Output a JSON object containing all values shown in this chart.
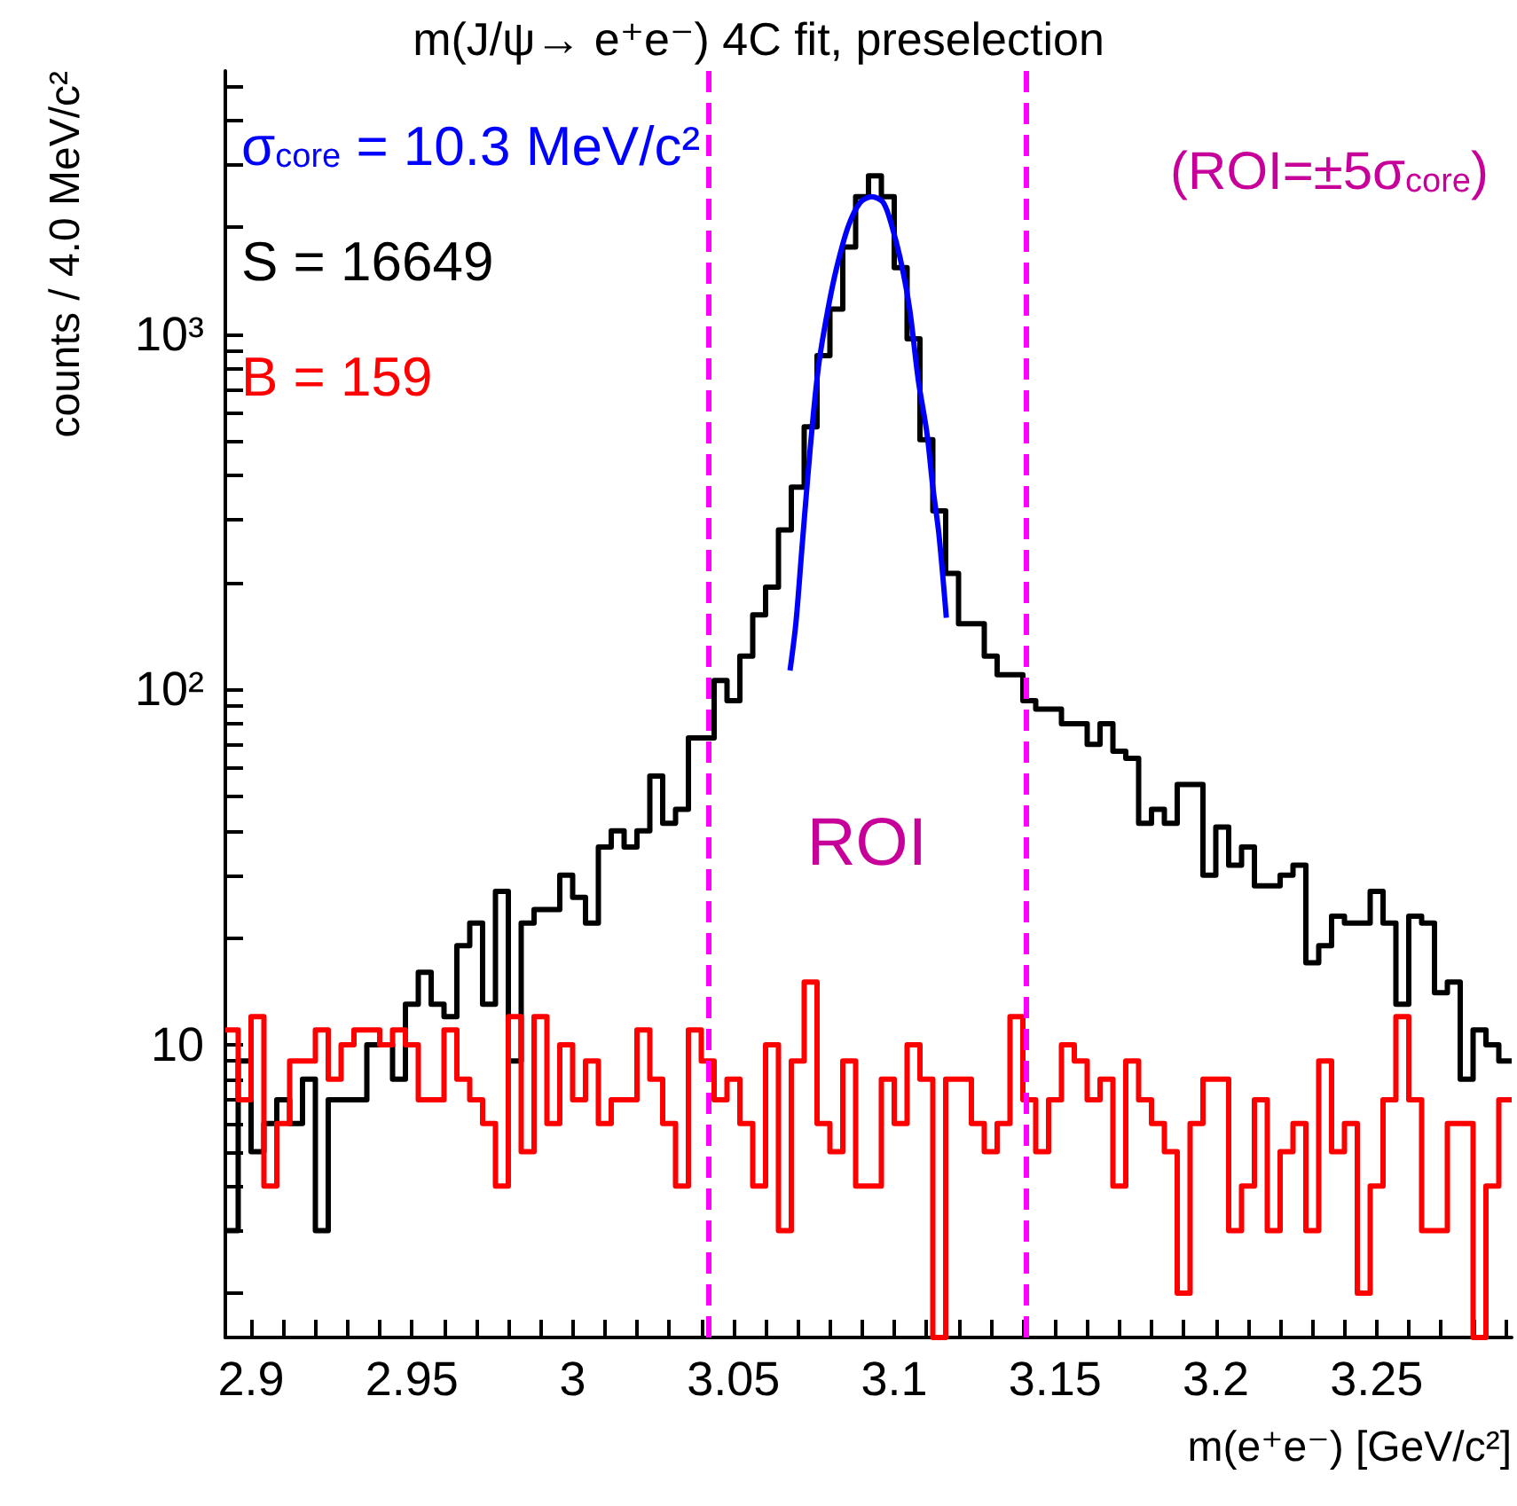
{
  "chart_data": {
    "type": "histogram",
    "title": "m(J/ψ→ e⁺e⁻) 4C fit, preselection",
    "xlabel": "m(e⁺e⁻) [GeV/c²]",
    "ylabel": "counts / 4.0 MeV/c²",
    "log": "y",
    "legend": "top left",
    "bins": [
      2.892,
      2.896,
      2.9,
      2.904,
      2.908,
      2.912,
      2.916,
      2.92,
      2.924,
      2.928,
      2.932,
      2.936,
      2.94,
      2.944,
      2.948,
      2.952,
      2.956,
      2.96,
      2.964,
      2.968,
      2.972,
      2.976,
      2.98,
      2.984,
      2.988,
      2.992,
      2.996,
      3,
      3.004,
      3.008,
      3.012,
      3.016,
      3.02,
      3.024,
      3.028,
      3.032,
      3.036,
      3.04,
      3.044,
      3.048,
      3.052,
      3.056,
      3.06,
      3.064,
      3.068,
      3.072,
      3.076,
      3.08,
      3.084,
      3.088,
      3.092,
      3.096,
      3.1,
      3.104,
      3.108,
      3.112,
      3.116,
      3.12,
      3.124,
      3.128,
      3.132,
      3.136,
      3.14,
      3.144,
      3.148,
      3.152,
      3.156,
      3.16,
      3.164,
      3.168,
      3.172,
      3.176,
      3.18,
      3.184,
      3.188,
      3.192,
      3.196,
      3.2,
      3.204,
      3.208,
      3.212,
      3.216,
      3.22,
      3.224,
      3.228,
      3.232,
      3.236,
      3.24,
      3.244,
      3.248,
      3.252,
      3.256,
      3.26,
      3.264,
      3.268,
      3.272,
      3.276,
      3.28,
      3.284,
      3.288,
      3.292
    ],
    "series": [
      {
        "name": "σ$_{core}$ = 10.3 MeV/c²",
        "type": "line",
        "color": "#0000ff",
        "x": [
          3.0676,
          3.0694,
          3.0712,
          3.073,
          3.0748,
          3.0766,
          3.0794,
          3.0821,
          3.0857,
          3.0894,
          3.093,
          3.0966,
          3.0993,
          3.1021,
          3.1048,
          3.1075,
          3.1102,
          3.112,
          3.1139,
          3.1162
        ],
        "values": [
          113,
          153,
          243,
          385,
          588,
          830,
          1175,
          1537,
          2009,
          2344,
          2437,
          2344,
          2009,
          1596,
          1175,
          740,
          524,
          371,
          273,
          159
        ]
      },
      {
        "name": "S = 16649",
        "color": "#000000",
        "values": [
          3,
          9,
          5,
          6,
          7,
          6,
          8,
          3,
          7,
          7,
          7,
          10,
          10,
          8,
          13,
          16,
          13,
          12,
          19,
          22,
          13,
          27,
          9,
          22,
          24,
          24,
          30,
          26,
          22,
          36,
          40,
          36,
          40,
          57,
          42,
          46,
          73,
          73,
          106,
          93,
          124,
          162,
          194,
          281,
          371,
          548,
          869,
          1175,
          1758,
          2437,
          2787,
          2437,
          1537,
          969,
          504,
          318,
          212,
          153,
          153,
          124,
          110,
          110,
          93,
          88,
          88,
          80,
          80,
          70,
          80,
          67,
          64,
          42,
          46,
          42,
          54,
          54,
          30,
          41,
          32,
          36,
          28,
          28,
          30,
          32,
          17,
          19,
          23,
          22,
          22,
          27,
          22,
          13,
          23,
          22,
          14,
          15,
          8,
          11,
          10,
          9
        ]
      },
      {
        "name": "B = 159",
        "color": "#ff0000",
        "values": [
          11,
          7,
          12,
          4,
          6,
          9,
          9,
          11,
          8,
          10,
          11,
          11,
          10,
          11,
          10,
          7,
          7,
          11,
          8,
          7,
          6,
          4,
          12,
          5,
          12,
          6,
          10,
          7,
          9,
          6,
          7,
          7,
          11,
          8,
          6,
          4,
          11,
          9,
          7,
          8,
          6,
          4,
          10,
          3,
          9,
          15,
          6,
          5,
          9,
          4,
          4,
          8,
          6,
          10,
          8,
          null,
          8,
          8,
          6,
          5,
          6,
          12,
          7,
          5,
          7,
          10,
          9,
          7,
          8,
          4,
          9,
          7,
          6,
          5,
          2,
          6,
          8,
          8,
          3,
          4,
          7,
          3,
          5,
          6,
          3,
          9,
          5,
          6,
          2,
          4,
          7,
          12,
          7,
          3,
          3,
          6,
          6,
          null,
          4,
          7
        ]
      }
    ],
    "xlim": [
      2.892,
      3.292
    ],
    "xticks": [
      2.9,
      {
        "value": 2.91,
        "label": null
      },
      {
        "value": 2.92,
        "label": null
      },
      {
        "value": 2.93,
        "label": null
      },
      {
        "value": 2.94,
        "label": null
      },
      2.95,
      {
        "value": 2.96,
        "label": null
      },
      {
        "value": 2.97,
        "label": null
      },
      {
        "value": 2.98,
        "label": null
      },
      {
        "value": 2.99,
        "label": null
      },
      3,
      {
        "value": 3.01,
        "label": null
      },
      {
        "value": 3.02,
        "label": null
      },
      {
        "value": 3.03,
        "label": null
      },
      {
        "value": 3.04,
        "label": null
      },
      3.05,
      {
        "value": 3.06,
        "label": null
      },
      {
        "value": 3.07,
        "label": null
      },
      {
        "value": 3.08,
        "label": null
      },
      {
        "value": 3.09,
        "label": null
      },
      3.1,
      {
        "value": 3.11,
        "label": null
      },
      {
        "value": 3.12,
        "label": null
      },
      {
        "value": 3.13,
        "label": null
      },
      {
        "value": 3.14,
        "label": null
      },
      3.15,
      {
        "value": 3.16,
        "label": null
      },
      {
        "value": 3.17,
        "label": null
      },
      {
        "value": 3.18,
        "label": null
      },
      {
        "value": 3.19,
        "label": null
      },
      3.2,
      {
        "value": 3.21,
        "label": null
      },
      {
        "value": 3.22,
        "label": null
      },
      {
        "value": 3.23,
        "label": null
      },
      {
        "value": 3.24,
        "label": null
      },
      3.25,
      {
        "value": 3.26,
        "label": null
      },
      {
        "value": 3.27,
        "label": null
      },
      {
        "value": 3.28,
        "label": null
      },
      {
        "value": 3.29,
        "label": null
      }
    ],
    "ylim": [
      1.5,
      5500
    ],
    "yticks": [
      {
        "value": 2,
        "label": null
      },
      {
        "value": 3,
        "label": null
      },
      {
        "value": 4,
        "label": null
      },
      {
        "value": 5,
        "label": null
      },
      {
        "value": 6,
        "label": null
      },
      {
        "value": 7,
        "label": null
      },
      {
        "value": 8,
        "label": null
      },
      {
        "value": 9,
        "label": null
      },
      10,
      {
        "value": 20,
        "label": null
      },
      {
        "value": 30,
        "label": null
      },
      {
        "value": 40,
        "label": null
      },
      {
        "value": 50,
        "label": null
      },
      {
        "value": 60,
        "label": null
      },
      {
        "value": 70,
        "label": null
      },
      {
        "value": 80,
        "label": null
      },
      {
        "value": 90,
        "label": null
      },
      {
        "value": 100,
        "label": "10²"
      },
      {
        "value": 200,
        "label": null
      },
      {
        "value": 300,
        "label": null
      },
      {
        "value": 400,
        "label": null
      },
      {
        "value": 500,
        "label": null
      },
      {
        "value": 600,
        "label": null
      },
      {
        "value": 700,
        "label": null
      },
      {
        "value": 800,
        "label": null
      },
      {
        "value": 900,
        "label": null
      },
      {
        "value": 1000,
        "label": "10³"
      },
      {
        "value": 2000,
        "label": null
      },
      {
        "value": 3000,
        "label": null
      },
      {
        "value": 4000,
        "label": null
      },
      {
        "value": 5000,
        "label": null
      }
    ],
    "ref_lines": [
      {
        "axis": "x",
        "value": 3.042,
        "color": "#ff00ff",
        "line_style": "dashed"
      },
      {
        "axis": "x",
        "value": 3.141,
        "color": "#ff00ff",
        "line_style": "dashed"
      }
    ],
    "annotations": [
      "(ROI=±5σ$_{core}$)",
      "ROI"
    ]
  }
}
